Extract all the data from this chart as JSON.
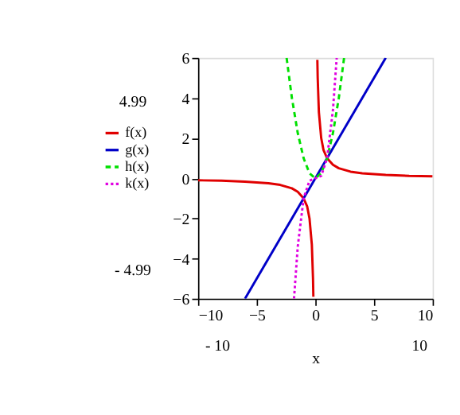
{
  "chart_data": {
    "type": "line",
    "xlabel": "x",
    "xlim": [
      -10,
      10
    ],
    "xticks": [
      -10,
      -5,
      0,
      5,
      10
    ],
    "ylim": [
      -6,
      6
    ],
    "yticks": [
      -6,
      -4,
      -2,
      0,
      2,
      4,
      6
    ],
    "grid": false,
    "legend": "left",
    "marker": "none",
    "annotations": [
      "4.99",
      "- 4.99",
      "- 10",
      "10"
    ],
    "series": [
      {
        "name": "f(x)",
        "color": "#e00000",
        "line_style": "solid",
        "x": [
          -10,
          -8,
          -6,
          -4,
          -3,
          -2,
          -1.5,
          -1,
          -0.7,
          -0.5,
          -0.3,
          -0.2,
          -0.17,
          0,
          0.17,
          0.2,
          0.3,
          0.5,
          0.7,
          1,
          1.5,
          2,
          3,
          4,
          6,
          8,
          10
        ],
        "values": [
          -0.1,
          -0.12,
          -0.17,
          -0.25,
          -0.33,
          -0.5,
          -0.67,
          -1,
          -1.4,
          -2,
          -3.3,
          -5,
          -5.9,
          null,
          5.9,
          5,
          3.3,
          2,
          1.4,
          1,
          0.67,
          0.5,
          0.33,
          0.25,
          0.17,
          0.12,
          0.1
        ]
      },
      {
        "name": "g(x)",
        "color": "#0000c8",
        "line_style": "solid",
        "x": [
          -6,
          6
        ],
        "values": [
          -6,
          6
        ]
      },
      {
        "name": "h(x)",
        "color": "#00e000",
        "line_style": "dashed",
        "x": [
          -2.45,
          -2,
          -1.5,
          -1,
          -0.5,
          0,
          0.5,
          1,
          1.5,
          2,
          2.45
        ],
        "values": [
          6,
          4,
          2.25,
          1,
          0.25,
          0,
          0.25,
          1,
          2.25,
          4,
          6
        ]
      },
      {
        "name": "k(x)",
        "color": "#e000e0",
        "line_style": "dotted",
        "x": [
          -1.82,
          -1.5,
          -1,
          -0.5,
          0,
          0.5,
          1,
          1.5,
          1.82
        ],
        "values": [
          -6,
          -3.4,
          -1,
          -0.12,
          0,
          0.12,
          1,
          3.4,
          6
        ]
      }
    ]
  }
}
